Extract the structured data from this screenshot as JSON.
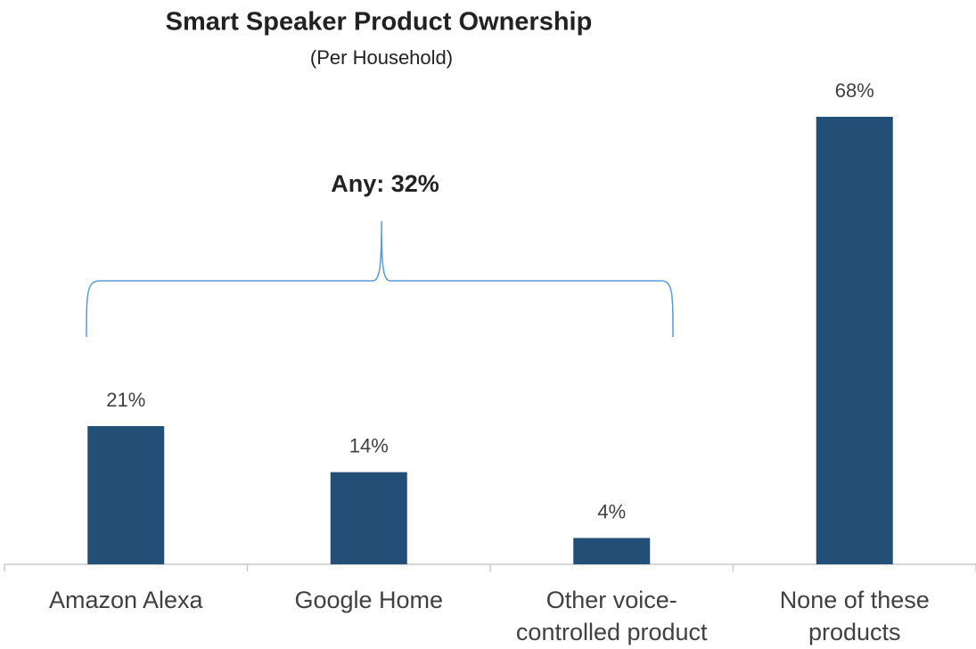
{
  "chart_data": {
    "type": "bar",
    "title": "Smart Speaker Product Ownership",
    "subtitle": "(Per Household)",
    "annotation": "Any: 32%",
    "categories": [
      "Amazon Alexa",
      "Google Home",
      "Other voice-controlled product",
      "None of these products"
    ],
    "values": [
      21,
      14,
      4,
      68
    ],
    "value_labels": [
      "21%",
      "14%",
      "4%",
      "68%"
    ],
    "color": "#234f77"
  }
}
